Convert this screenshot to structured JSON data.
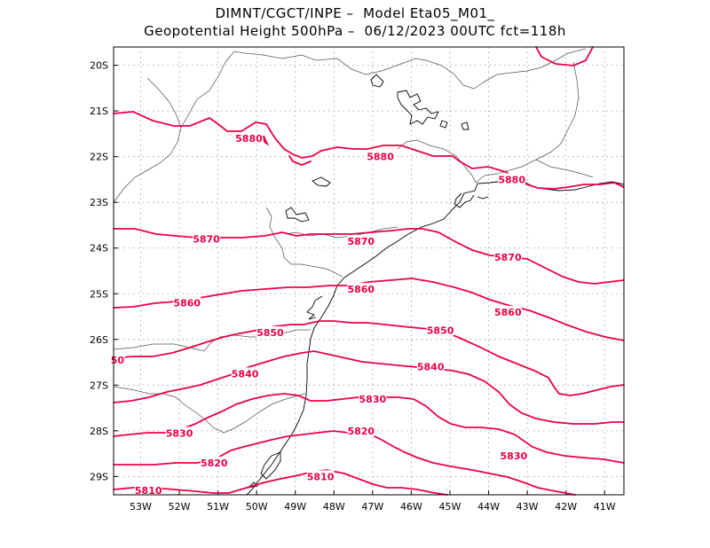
{
  "title": {
    "line1": "DIMNT/CGCT/INPE –  Model Eta05_M01_",
    "line2": "Geopotential Height 500hPa –  06/12/2023 00UTC fct=118h"
  },
  "map": {
    "lon_range": [
      -53.7,
      -40.5
    ],
    "lat_range": [
      -29.4,
      -19.6
    ],
    "x_ticks": [
      "53W",
      "52W",
      "51W",
      "50W",
      "49W",
      "48W",
      "47W",
      "46W",
      "45W",
      "44W",
      "43W",
      "42W",
      "41W"
    ],
    "y_ticks": [
      "20S",
      "21S",
      "22S",
      "23S",
      "24S",
      "25S",
      "26S",
      "27S",
      "28S",
      "29S"
    ],
    "grid": "dotted",
    "contour_color": "#ee0044",
    "coast_color": "#000000",
    "border_color": "#555555",
    "contour_labels": [
      {
        "text": "5880",
        "lon": -50.2,
        "lat": -21.6
      },
      {
        "text": "5880",
        "lon": -46.8,
        "lat": -22.0
      },
      {
        "text": "5880",
        "lon": -43.4,
        "lat": -22.5
      },
      {
        "text": "5870",
        "lon": -51.3,
        "lat": -23.8
      },
      {
        "text": "5870",
        "lon": -47.3,
        "lat": -23.85
      },
      {
        "text": "5870",
        "lon": -43.5,
        "lat": -24.2
      },
      {
        "text": "5860",
        "lon": -47.3,
        "lat": -24.9
      },
      {
        "text": "5860",
        "lon": -51.8,
        "lat": -25.2
      },
      {
        "text": "5860",
        "lon": -43.5,
        "lat": -25.4
      },
      {
        "text": "5850",
        "lon": -49.65,
        "lat": -25.85
      },
      {
        "text": "5850",
        "lon": -45.25,
        "lat": -25.8
      },
      {
        "text": "50",
        "lon": -53.6,
        "lat": -26.45
      },
      {
        "text": "5840",
        "lon": -50.3,
        "lat": -26.75
      },
      {
        "text": "5840",
        "lon": -45.5,
        "lat": -26.6
      },
      {
        "text": "5830",
        "lon": -47.0,
        "lat": -27.3
      },
      {
        "text": "5830",
        "lon": -52.0,
        "lat": -28.05
      },
      {
        "text": "5820",
        "lon": -47.3,
        "lat": -28.0
      },
      {
        "text": "5830",
        "lon": -43.35,
        "lat": -28.55
      },
      {
        "text": "5820",
        "lon": -51.1,
        "lat": -28.7
      },
      {
        "text": "5810",
        "lon": -48.35,
        "lat": -29.0
      },
      {
        "text": "5810",
        "lon": -52.8,
        "lat": -29.3
      }
    ]
  }
}
